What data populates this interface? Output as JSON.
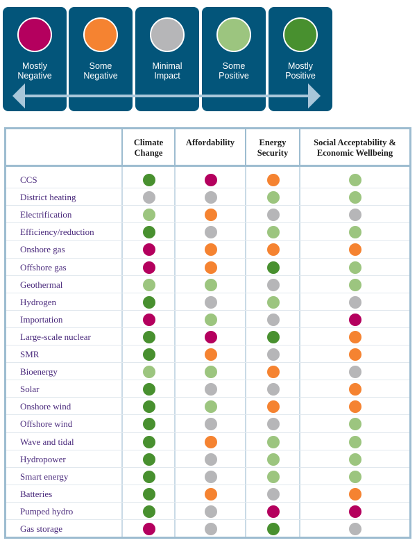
{
  "colors": {
    "mostly_negative": "#b4005e",
    "some_negative": "#f58331",
    "minimal_impact": "#b6b6b8",
    "some_positive": "#9cc57f",
    "mostly_positive": "#48902f",
    "tile_bg": "#03557a",
    "arrow": "#a9c7da"
  },
  "legend": [
    {
      "key": "mostly_negative",
      "line1": "Mostly",
      "line2": "Negative"
    },
    {
      "key": "some_negative",
      "line1": "Some",
      "line2": "Negative"
    },
    {
      "key": "minimal_impact",
      "line1": "Minimal",
      "line2": "Impact"
    },
    {
      "key": "some_positive",
      "line1": "Some",
      "line2": "Positive"
    },
    {
      "key": "mostly_positive",
      "line1": "Mostly",
      "line2": "Positive"
    }
  ],
  "columns": [
    {
      "line1": "Climate",
      "line2": "Change"
    },
    {
      "line1": "Affordability",
      "line2": ""
    },
    {
      "line1": "Energy",
      "line2": "Security"
    },
    {
      "line1": "Social Acceptability &",
      "line2": "Economic Wellbeing"
    }
  ],
  "rows": [
    {
      "name": "CCS",
      "ratings": [
        "mostly_positive",
        "mostly_negative",
        "some_negative",
        "some_positive"
      ]
    },
    {
      "name": "District heating",
      "ratings": [
        "minimal_impact",
        "minimal_impact",
        "some_positive",
        "some_positive"
      ]
    },
    {
      "name": "Electrification",
      "ratings": [
        "some_positive",
        "some_negative",
        "minimal_impact",
        "minimal_impact"
      ]
    },
    {
      "name": "Efficiency/reduction",
      "ratings": [
        "mostly_positive",
        "minimal_impact",
        "some_positive",
        "some_positive"
      ]
    },
    {
      "name": "Onshore gas",
      "ratings": [
        "mostly_negative",
        "some_negative",
        "some_negative",
        "some_negative"
      ]
    },
    {
      "name": "Offshore gas",
      "ratings": [
        "mostly_negative",
        "some_negative",
        "mostly_positive",
        "some_positive"
      ]
    },
    {
      "name": "Geothermal",
      "ratings": [
        "some_positive",
        "some_positive",
        "minimal_impact",
        "some_positive"
      ]
    },
    {
      "name": "Hydrogen",
      "ratings": [
        "mostly_positive",
        "minimal_impact",
        "some_positive",
        "minimal_impact"
      ]
    },
    {
      "name": "Importation",
      "ratings": [
        "mostly_negative",
        "some_positive",
        "minimal_impact",
        "mostly_negative"
      ]
    },
    {
      "name": "Large-scale nuclear",
      "ratings": [
        "mostly_positive",
        "mostly_negative",
        "mostly_positive",
        "some_negative"
      ]
    },
    {
      "name": "SMR",
      "ratings": [
        "mostly_positive",
        "some_negative",
        "minimal_impact",
        "some_negative"
      ]
    },
    {
      "name": "Bioenergy",
      "ratings": [
        "some_positive",
        "some_positive",
        "some_negative",
        "minimal_impact"
      ]
    },
    {
      "name": "Solar",
      "ratings": [
        "mostly_positive",
        "minimal_impact",
        "minimal_impact",
        "some_negative"
      ]
    },
    {
      "name": "Onshore wind",
      "ratings": [
        "mostly_positive",
        "some_positive",
        "some_negative",
        "some_negative"
      ]
    },
    {
      "name": "Offshore wind",
      "ratings": [
        "mostly_positive",
        "minimal_impact",
        "minimal_impact",
        "some_positive"
      ]
    },
    {
      "name": "Wave and tidal",
      "ratings": [
        "mostly_positive",
        "some_negative",
        "some_positive",
        "some_positive"
      ]
    },
    {
      "name": "Hydropower",
      "ratings": [
        "mostly_positive",
        "minimal_impact",
        "some_positive",
        "some_positive"
      ]
    },
    {
      "name": "Smart energy",
      "ratings": [
        "mostly_positive",
        "minimal_impact",
        "some_positive",
        "some_positive"
      ]
    },
    {
      "name": "Batteries",
      "ratings": [
        "mostly_positive",
        "some_negative",
        "minimal_impact",
        "some_negative"
      ]
    },
    {
      "name": "Pumped hydro",
      "ratings": [
        "mostly_positive",
        "minimal_impact",
        "mostly_negative",
        "mostly_negative"
      ]
    },
    {
      "name": "Gas storage",
      "ratings": [
        "mostly_negative",
        "minimal_impact",
        "mostly_positive",
        "minimal_impact"
      ]
    }
  ]
}
